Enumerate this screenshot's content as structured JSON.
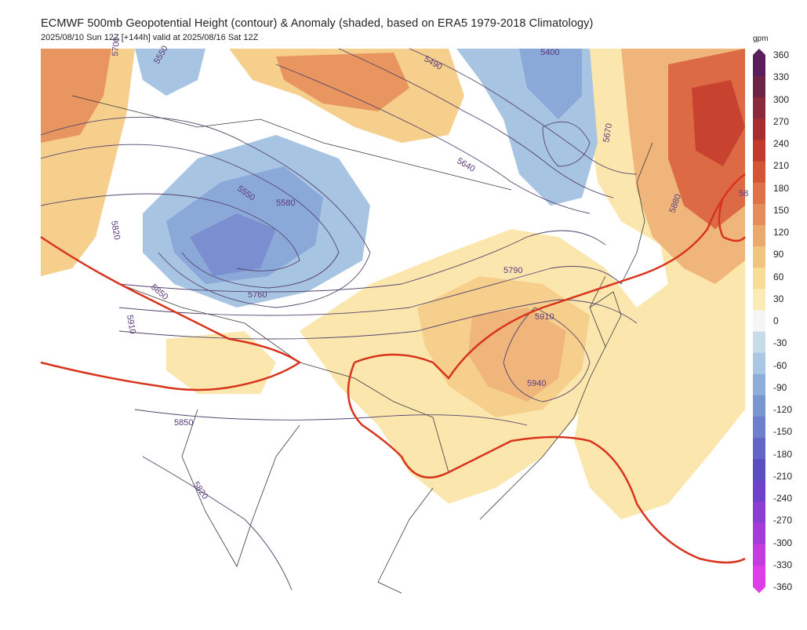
{
  "title": "ECMWF 500mb Geopotential Height (contour) & Anomaly (shaded, based on ERA5 1979-2018 Climatology)",
  "subtitle": "2025/08/10 Sun 12Z [+144h] valid at 2025/08/16 Sat 12Z",
  "colorbar": {
    "unit": "gpm",
    "labels": [
      "360",
      "330",
      "300",
      "270",
      "240",
      "210",
      "180",
      "150",
      "120",
      "90",
      "60",
      "30",
      "0",
      "-30",
      "-60",
      "-90",
      "-120",
      "-150",
      "-180",
      "-210",
      "-240",
      "-270",
      "-300",
      "-330",
      "-360"
    ],
    "colors": [
      "#5a1e5c",
      "#6d2444",
      "#8a2a3a",
      "#a72e2e",
      "#c23b2c",
      "#d45534",
      "#e07048",
      "#e58c5c",
      "#eba96d",
      "#f1c57f",
      "#f7dd96",
      "#fbecb5",
      "#f5f5f5",
      "#c7dbe9",
      "#a9c7e2",
      "#8daed9",
      "#7a96d0",
      "#6e7fcb",
      "#6366c6",
      "#5a4ec1",
      "#6d42c8",
      "#8b3ed0",
      "#a63cd8",
      "#c43be0",
      "#de3ee8"
    ]
  },
  "contour_labels": [
    "5550",
    "5580",
    "5490",
    "5640",
    "5670",
    "5820",
    "5850",
    "5910",
    "5760",
    "5790",
    "5910",
    "5940",
    "5880",
    "5850",
    "5820",
    "5700",
    "5550",
    "5400",
    "58"
  ],
  "map_symbols": {
    "warm_anomaly_colors": [
      "#fbe7ad",
      "#f6cf8d",
      "#efb57a",
      "#e9955f",
      "#dc6a45",
      "#c8432f"
    ],
    "cold_anomaly_colors": [
      "#c6dcea",
      "#a7c4e2",
      "#8aa8d8",
      "#7b8fd0",
      "#6c74c8"
    ],
    "ridge_5880_color": "#d8341d",
    "contour_color": "#55446e",
    "coastline_color": "#3a3a3a"
  }
}
